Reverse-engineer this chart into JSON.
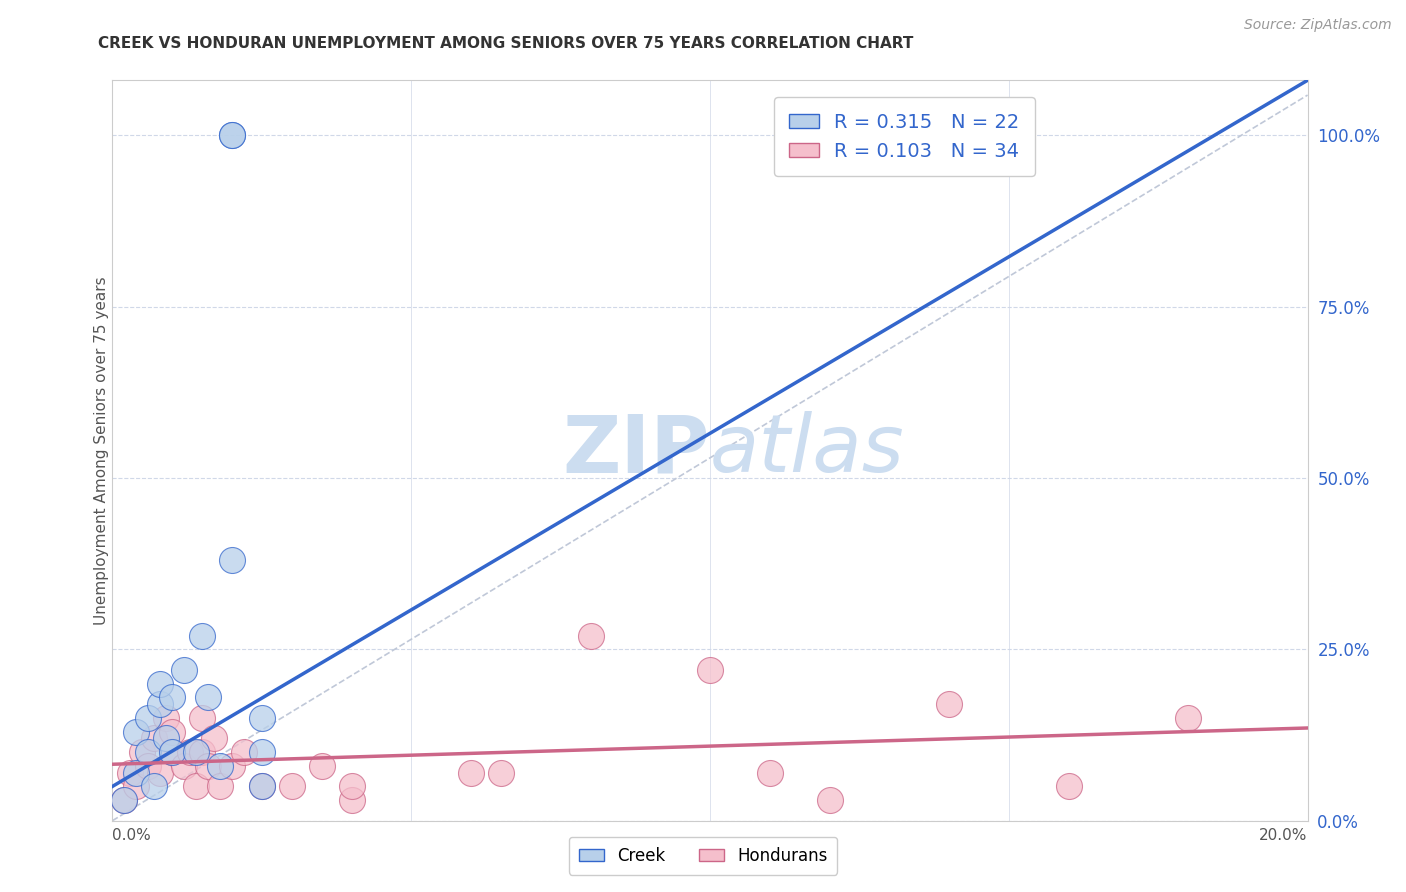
{
  "title": "CREEK VS HONDURAN UNEMPLOYMENT AMONG SENIORS OVER 75 YEARS CORRELATION CHART",
  "source": "Source: ZipAtlas.com",
  "ylabel": "Unemployment Among Seniors over 75 years",
  "ytick_labels": [
    "0.0%",
    "25.0%",
    "50.0%",
    "75.0%",
    "100.0%"
  ],
  "ytick_values": [
    0.0,
    0.25,
    0.5,
    0.75,
    1.0
  ],
  "xmin": 0.0,
  "xmax": 0.2,
  "ymin": 0.0,
  "ymax": 1.08,
  "creek_color": "#b8d0ea",
  "honduran_color": "#f5bfcc",
  "creek_line_color": "#3366cc",
  "honduran_line_color": "#cc6688",
  "diagonal_color": "#c0c8d8",
  "legend_text_color": "#3366cc",
  "creek_R": 0.315,
  "creek_N": 22,
  "honduran_R": 0.103,
  "honduran_N": 34,
  "creek_scatter_x": [
    0.002,
    0.004,
    0.004,
    0.006,
    0.006,
    0.007,
    0.008,
    0.008,
    0.009,
    0.01,
    0.01,
    0.012,
    0.014,
    0.015,
    0.016,
    0.018,
    0.02,
    0.02,
    0.02,
    0.025,
    0.025,
    0.025
  ],
  "creek_scatter_y": [
    0.03,
    0.07,
    0.13,
    0.1,
    0.15,
    0.05,
    0.17,
    0.2,
    0.12,
    0.18,
    0.1,
    0.22,
    0.1,
    0.27,
    0.18,
    0.08,
    1.0,
    1.0,
    0.38,
    0.1,
    0.15,
    0.05
  ],
  "honduran_scatter_x": [
    0.002,
    0.003,
    0.004,
    0.005,
    0.006,
    0.007,
    0.008,
    0.009,
    0.01,
    0.01,
    0.012,
    0.013,
    0.014,
    0.015,
    0.015,
    0.016,
    0.017,
    0.018,
    0.02,
    0.022,
    0.025,
    0.03,
    0.035,
    0.04,
    0.04,
    0.06,
    0.065,
    0.08,
    0.1,
    0.11,
    0.12,
    0.14,
    0.16,
    0.18
  ],
  "honduran_scatter_y": [
    0.03,
    0.07,
    0.05,
    0.1,
    0.08,
    0.12,
    0.07,
    0.15,
    0.1,
    0.13,
    0.08,
    0.1,
    0.05,
    0.1,
    0.15,
    0.08,
    0.12,
    0.05,
    0.08,
    0.1,
    0.05,
    0.05,
    0.08,
    0.03,
    0.05,
    0.07,
    0.07,
    0.27,
    0.22,
    0.07,
    0.03,
    0.17,
    0.05,
    0.15
  ],
  "watermark_zip": "ZIP",
  "watermark_atlas": "atlas",
  "watermark_color": "#ccddf0",
  "grid_color": "#d0d8e8",
  "background_color": "#ffffff"
}
